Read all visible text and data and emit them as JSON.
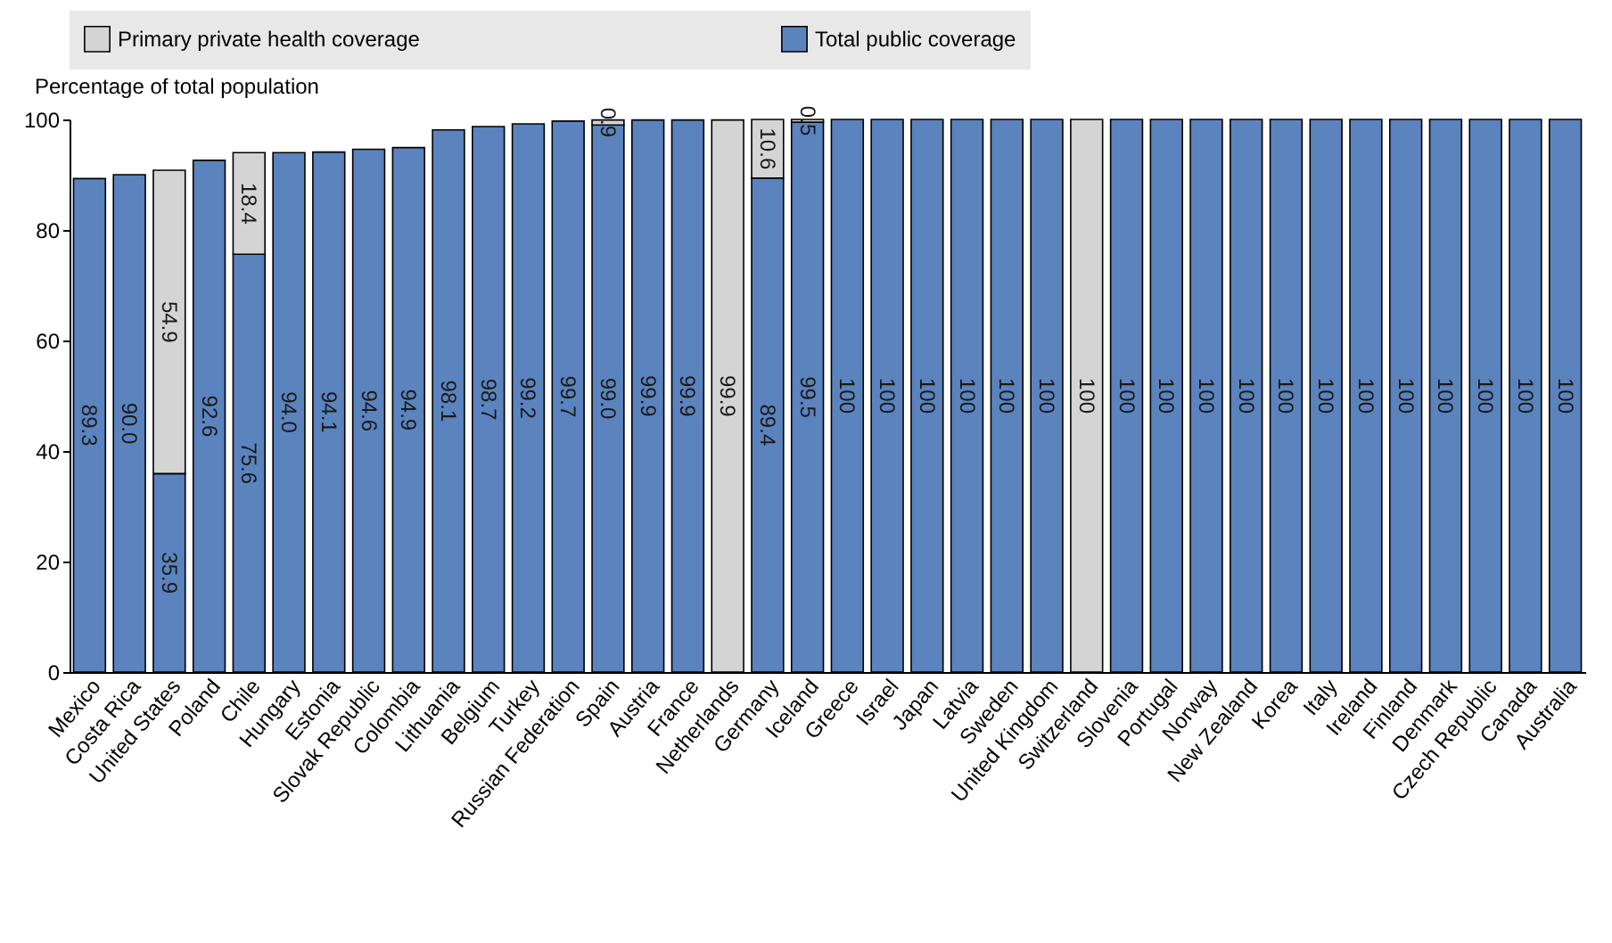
{
  "chart_data": {
    "type": "bar",
    "stacked": true,
    "ylabel": "Percentage of total population",
    "categories": [
      "Mexico",
      "Costa Rica",
      "United States",
      "Poland",
      "Chile",
      "Hungary",
      "Estonia",
      "Slovak Republic",
      "Colombia",
      "Lithuania",
      "Belgium",
      "Turkey",
      "Russian Federation",
      "Spain",
      "Austria",
      "France",
      "Netherlands",
      "Germany",
      "Iceland",
      "Greece",
      "Israel",
      "Japan",
      "Latvia",
      "Sweden",
      "United Kingdom",
      "Switzerland",
      "Slovenia",
      "Portugal",
      "Norway",
      "New Zealand",
      "Korea",
      "Italy",
      "Ireland",
      "Finland",
      "Denmark",
      "Czech Republic",
      "Canada",
      "Australia"
    ],
    "series": [
      {
        "name": "Total public coverage",
        "color": "#5b83be",
        "values": [
          89.3,
          90.0,
          35.9,
          92.6,
          75.6,
          94.0,
          94.1,
          94.6,
          94.9,
          98.1,
          98.7,
          99.2,
          99.7,
          99.0,
          99.9,
          99.9,
          null,
          89.4,
          99.5,
          100,
          100,
          100,
          100,
          100,
          100,
          null,
          100,
          100,
          100,
          100,
          100,
          100,
          100,
          100,
          100,
          100,
          100,
          100
        ],
        "value_labels": [
          "89.3",
          "90.0",
          "35.9",
          "92.6",
          "75.6",
          "94.0",
          "94.1",
          "94.6",
          "94.9",
          "98.1",
          "98.7",
          "99.2",
          "99.7",
          "99.0",
          "99.9",
          "99.9",
          null,
          "89.4",
          "99.5",
          "100",
          "100",
          "100",
          "100",
          "100",
          "100",
          null,
          "100",
          "100",
          "100",
          "100",
          "100",
          "100",
          "100",
          "100",
          "100",
          "100",
          "100",
          "100"
        ]
      },
      {
        "name": "Primary private health coverage",
        "color": "#d4d4d4",
        "values": [
          null,
          null,
          54.9,
          null,
          18.4,
          null,
          null,
          null,
          null,
          null,
          null,
          null,
          null,
          0.9,
          null,
          null,
          99.9,
          10.6,
          0.5,
          null,
          null,
          null,
          null,
          null,
          null,
          100,
          null,
          null,
          null,
          null,
          null,
          null,
          null,
          null,
          null,
          null,
          null,
          null
        ],
        "value_labels": [
          null,
          null,
          "54.9",
          null,
          "18.4",
          null,
          null,
          null,
          null,
          null,
          null,
          null,
          null,
          "0.9",
          null,
          null,
          "99.9",
          "10.6",
          "0.5",
          null,
          null,
          null,
          null,
          null,
          null,
          "100",
          null,
          null,
          null,
          null,
          null,
          null,
          null,
          null,
          null,
          null,
          null,
          null
        ]
      }
    ],
    "ylim": [
      0,
      100
    ],
    "yticks": [
      0,
      20,
      40,
      60,
      80,
      100
    ],
    "legend": "top"
  }
}
